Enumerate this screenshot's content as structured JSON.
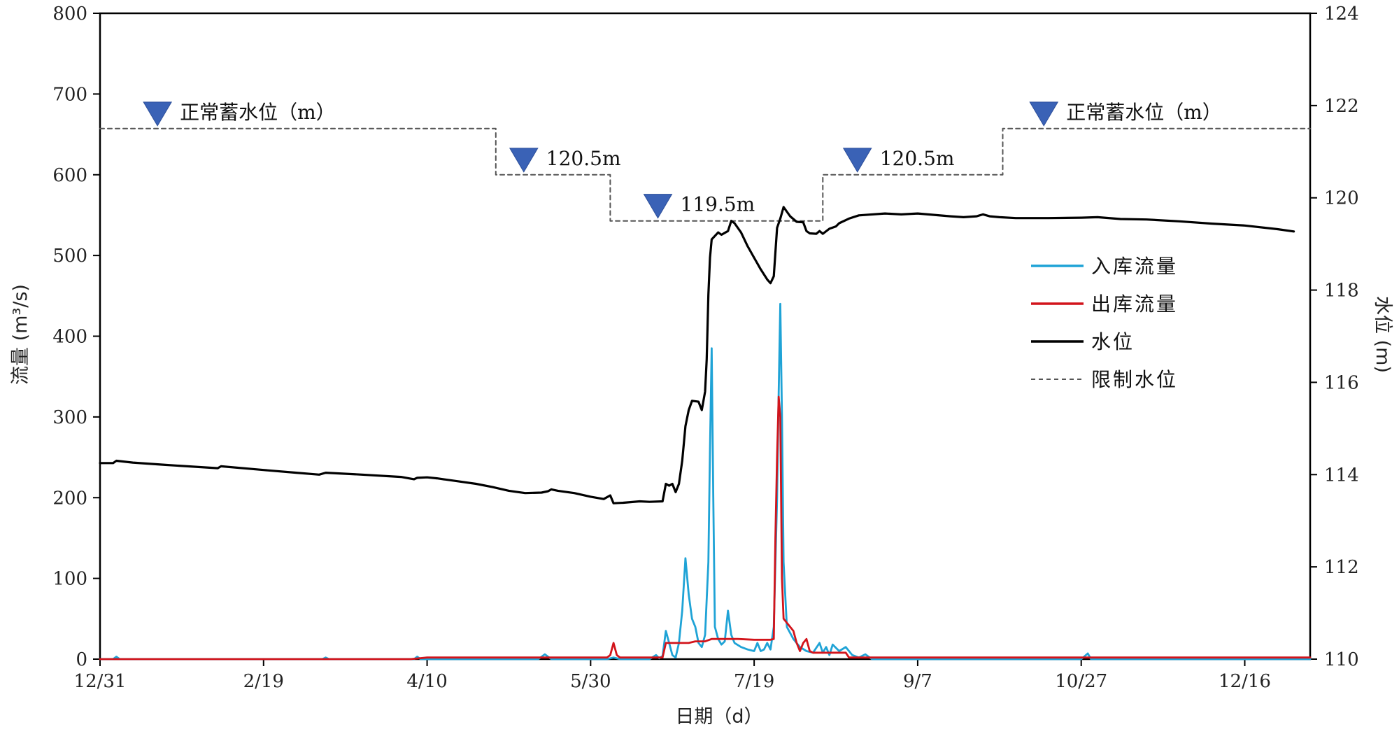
{
  "chart_data": {
    "type": "line",
    "title": "",
    "xlabel": "日期（d）",
    "ylabel_left": "流量 (m³/s)",
    "ylabel_right": "水位 (m)",
    "x_domain_days": [
      0,
      370
    ],
    "x_ticks": [
      {
        "day": 0,
        "label": "12/31"
      },
      {
        "day": 50,
        "label": "2/19"
      },
      {
        "day": 100,
        "label": "4/10"
      },
      {
        "day": 150,
        "label": "5/30"
      },
      {
        "day": 200,
        "label": "7/19"
      },
      {
        "day": 250,
        "label": "9/7"
      },
      {
        "day": 300,
        "label": "10/27"
      },
      {
        "day": 350,
        "label": "12/16"
      }
    ],
    "y_left": {
      "min": 0,
      "max": 800,
      "ticks": [
        0,
        100,
        200,
        300,
        400,
        500,
        600,
        700,
        800
      ]
    },
    "y_right": {
      "min": 110,
      "max": 124,
      "ticks": [
        110,
        112,
        114,
        116,
        118,
        120,
        122,
        124
      ]
    },
    "legend": {
      "position": "center-right",
      "items": [
        {
          "label": "入库流量",
          "color": "#1fa3d6",
          "style": "solid"
        },
        {
          "label": "出库流量",
          "color": "#d2141b",
          "style": "solid"
        },
        {
          "label": "水位",
          "color": "#000000",
          "style": "solid"
        },
        {
          "label": "限制水位",
          "color": "#555555",
          "style": "dashed"
        }
      ]
    },
    "annotations": [
      {
        "text": "正常蓄水位（m）",
        "x": 15,
        "y_right": 121.5
      },
      {
        "text": "120.5m",
        "x": 127,
        "y_right": 120.5
      },
      {
        "text": "119.5m",
        "x": 168,
        "y_right": 119.5
      },
      {
        "text": "120.5m",
        "x": 229,
        "y_right": 120.5
      },
      {
        "text": "正常蓄水位（m）",
        "x": 286,
        "y_right": 121.5
      }
    ],
    "series": [
      {
        "name": "限制水位",
        "axis": "right",
        "color": "#555555",
        "style": "dashed",
        "points": [
          [
            0,
            121.5
          ],
          [
            121,
            121.5
          ],
          [
            121,
            120.5
          ],
          [
            156,
            120.5
          ],
          [
            156,
            119.5
          ],
          [
            221,
            119.5
          ],
          [
            221,
            120.5
          ],
          [
            276,
            120.5
          ],
          [
            276,
            121.5
          ],
          [
            370,
            121.5
          ]
        ]
      },
      {
        "name": "水位",
        "axis": "right",
        "color": "#000000",
        "style": "solid",
        "points": [
          [
            0,
            114.25
          ],
          [
            4,
            114.25
          ],
          [
            5,
            114.3
          ],
          [
            10,
            114.26
          ],
          [
            20,
            114.21
          ],
          [
            36,
            114.14
          ],
          [
            37,
            114.18
          ],
          [
            50,
            114.1
          ],
          [
            60,
            114.04
          ],
          [
            67,
            114.0
          ],
          [
            69,
            114.04
          ],
          [
            80,
            114.0
          ],
          [
            92,
            113.95
          ],
          [
            96,
            113.9
          ],
          [
            97,
            113.93
          ],
          [
            100,
            113.94
          ],
          [
            103,
            113.92
          ],
          [
            110,
            113.85
          ],
          [
            115,
            113.8
          ],
          [
            120,
            113.73
          ],
          [
            125,
            113.65
          ],
          [
            130,
            113.6
          ],
          [
            135,
            113.61
          ],
          [
            137,
            113.64
          ],
          [
            138,
            113.68
          ],
          [
            140,
            113.65
          ],
          [
            145,
            113.6
          ],
          [
            150,
            113.52
          ],
          [
            154,
            113.47
          ],
          [
            156,
            113.55
          ],
          [
            157,
            113.38
          ],
          [
            160,
            113.39
          ],
          [
            165,
            113.42
          ],
          [
            168,
            113.41
          ],
          [
            172,
            113.42
          ],
          [
            173,
            113.8
          ],
          [
            174,
            113.76
          ],
          [
            175,
            113.8
          ],
          [
            176,
            113.62
          ],
          [
            177,
            113.8
          ],
          [
            178,
            114.3
          ],
          [
            179,
            115.05
          ],
          [
            180,
            115.4
          ],
          [
            181,
            115.6
          ],
          [
            183,
            115.58
          ],
          [
            184,
            115.4
          ],
          [
            185,
            115.8
          ],
          [
            185.5,
            116.5
          ],
          [
            186,
            117.9
          ],
          [
            186.5,
            118.7
          ],
          [
            187,
            119.1
          ],
          [
            189,
            119.25
          ],
          [
            190,
            119.2
          ],
          [
            192,
            119.28
          ],
          [
            193,
            119.5
          ],
          [
            194,
            119.45
          ],
          [
            196,
            119.25
          ],
          [
            198,
            118.95
          ],
          [
            200,
            118.7
          ],
          [
            202,
            118.45
          ],
          [
            204,
            118.23
          ],
          [
            205,
            118.15
          ],
          [
            206,
            118.3
          ],
          [
            207,
            119.35
          ],
          [
            208,
            119.55
          ],
          [
            209,
            119.8
          ],
          [
            210,
            119.7
          ],
          [
            211,
            119.6
          ],
          [
            213,
            119.48
          ],
          [
            215,
            119.47
          ],
          [
            216,
            119.28
          ],
          [
            217,
            119.23
          ],
          [
            219,
            119.22
          ],
          [
            220,
            119.28
          ],
          [
            221,
            119.22
          ],
          [
            223,
            119.33
          ],
          [
            225,
            119.38
          ],
          [
            226,
            119.45
          ],
          [
            229,
            119.55
          ],
          [
            232,
            119.62
          ],
          [
            240,
            119.66
          ],
          [
            245,
            119.64
          ],
          [
            250,
            119.66
          ],
          [
            255,
            119.63
          ],
          [
            260,
            119.6
          ],
          [
            264,
            119.58
          ],
          [
            268,
            119.6
          ],
          [
            270,
            119.64
          ],
          [
            272,
            119.6
          ],
          [
            275,
            119.58
          ],
          [
            280,
            119.56
          ],
          [
            290,
            119.56
          ],
          [
            300,
            119.57
          ],
          [
            305,
            119.58
          ],
          [
            312,
            119.54
          ],
          [
            320,
            119.53
          ],
          [
            330,
            119.49
          ],
          [
            340,
            119.44
          ],
          [
            350,
            119.4
          ],
          [
            360,
            119.32
          ],
          [
            365,
            119.27
          ]
        ]
      },
      {
        "name": "入库流量",
        "axis": "left",
        "color": "#1fa3d6",
        "style": "solid",
        "points": [
          [
            0,
            0
          ],
          [
            4,
            0
          ],
          [
            5,
            3
          ],
          [
            6,
            0
          ],
          [
            68,
            0
          ],
          [
            69,
            2
          ],
          [
            70,
            0
          ],
          [
            96,
            0
          ],
          [
            97,
            3
          ],
          [
            98,
            0
          ],
          [
            134,
            0
          ],
          [
            136,
            6
          ],
          [
            138,
            0
          ],
          [
            155,
            0
          ],
          [
            157,
            2
          ],
          [
            159,
            0
          ],
          [
            168,
            0
          ],
          [
            170,
            5
          ],
          [
            171,
            1
          ],
          [
            172,
            4
          ],
          [
            173,
            35
          ],
          [
            174,
            20
          ],
          [
            175,
            5
          ],
          [
            176,
            2
          ],
          [
            177,
            20
          ],
          [
            178,
            60
          ],
          [
            179,
            125
          ],
          [
            180,
            80
          ],
          [
            181,
            50
          ],
          [
            182,
            40
          ],
          [
            183,
            20
          ],
          [
            184,
            15
          ],
          [
            185,
            30
          ],
          [
            186,
            120
          ],
          [
            186.5,
            260
          ],
          [
            187,
            385
          ],
          [
            187.5,
            200
          ],
          [
            188,
            40
          ],
          [
            189,
            25
          ],
          [
            190,
            18
          ],
          [
            191,
            22
          ],
          [
            192,
            60
          ],
          [
            193,
            30
          ],
          [
            194,
            20
          ],
          [
            196,
            15
          ],
          [
            198,
            12
          ],
          [
            200,
            10
          ],
          [
            201,
            20
          ],
          [
            202,
            10
          ],
          [
            203,
            12
          ],
          [
            204,
            20
          ],
          [
            205,
            12
          ],
          [
            206,
            40
          ],
          [
            207,
            200
          ],
          [
            207.5,
            330
          ],
          [
            208,
            440
          ],
          [
            208.5,
            300
          ],
          [
            209,
            120
          ],
          [
            210,
            40
          ],
          [
            212,
            25
          ],
          [
            214,
            15
          ],
          [
            216,
            10
          ],
          [
            218,
            8
          ],
          [
            220,
            20
          ],
          [
            221,
            8
          ],
          [
            222,
            15
          ],
          [
            223,
            5
          ],
          [
            224,
            18
          ],
          [
            226,
            10
          ],
          [
            228,
            15
          ],
          [
            230,
            5
          ],
          [
            232,
            2
          ],
          [
            234,
            6
          ],
          [
            236,
            0
          ],
          [
            240,
            0
          ],
          [
            300,
            0
          ],
          [
            302,
            7
          ],
          [
            303,
            0
          ],
          [
            370,
            0
          ]
        ]
      },
      {
        "name": "出库流量",
        "axis": "left",
        "color": "#d2141b",
        "style": "solid",
        "points": [
          [
            0,
            0
          ],
          [
            95,
            0
          ],
          [
            100,
            2
          ],
          [
            155,
            2
          ],
          [
            156,
            5
          ],
          [
            157,
            20
          ],
          [
            158,
            5
          ],
          [
            159,
            2
          ],
          [
            172,
            2
          ],
          [
            173,
            20
          ],
          [
            180,
            20
          ],
          [
            182,
            22
          ],
          [
            185,
            22
          ],
          [
            187,
            25
          ],
          [
            195,
            25
          ],
          [
            200,
            24
          ],
          [
            205,
            24
          ],
          [
            206,
            25
          ],
          [
            206.5,
            150
          ],
          [
            207,
            250
          ],
          [
            207.5,
            325
          ],
          [
            208,
            300
          ],
          [
            208.5,
            100
          ],
          [
            209,
            50
          ],
          [
            210,
            45
          ],
          [
            212,
            35
          ],
          [
            213,
            20
          ],
          [
            214,
            10
          ],
          [
            215,
            20
          ],
          [
            216,
            25
          ],
          [
            217,
            10
          ],
          [
            218,
            8
          ],
          [
            226,
            8
          ],
          [
            228,
            8
          ],
          [
            229,
            2
          ],
          [
            240,
            2
          ],
          [
            300,
            2
          ],
          [
            370,
            2
          ]
        ]
      }
    ]
  }
}
